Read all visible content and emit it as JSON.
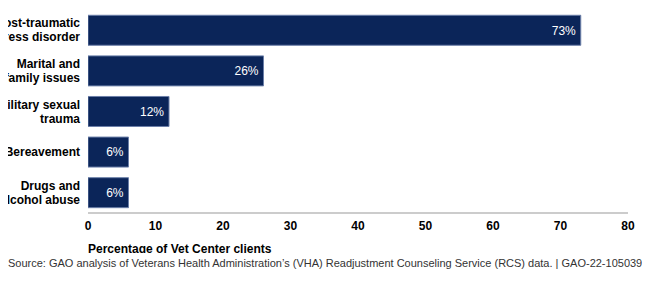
{
  "chart_data": {
    "type": "bar",
    "orientation": "horizontal",
    "categories": [
      "Post-traumatic stress disorder",
      "Marital and family issues",
      "Military sexual trauma",
      "Bereavement",
      "Drugs and alcohol abuse"
    ],
    "values": [
      73,
      26,
      12,
      6,
      6
    ],
    "value_labels": [
      "73%",
      "26%",
      "12%",
      "6%",
      "6%"
    ],
    "data_labels": true,
    "color": "#0b2559",
    "xlim": [
      0,
      80
    ],
    "xticks": [
      0,
      10,
      20,
      30,
      40,
      50,
      60,
      70,
      80
    ],
    "xlabel": "Percentage of Vet Center clients",
    "grid": false,
    "source": "Source: GAO analysis of Veterans Health Administration’s (VHA) Readjustment Counseling Service (RCS) data.  |  GAO-22-105039"
  }
}
